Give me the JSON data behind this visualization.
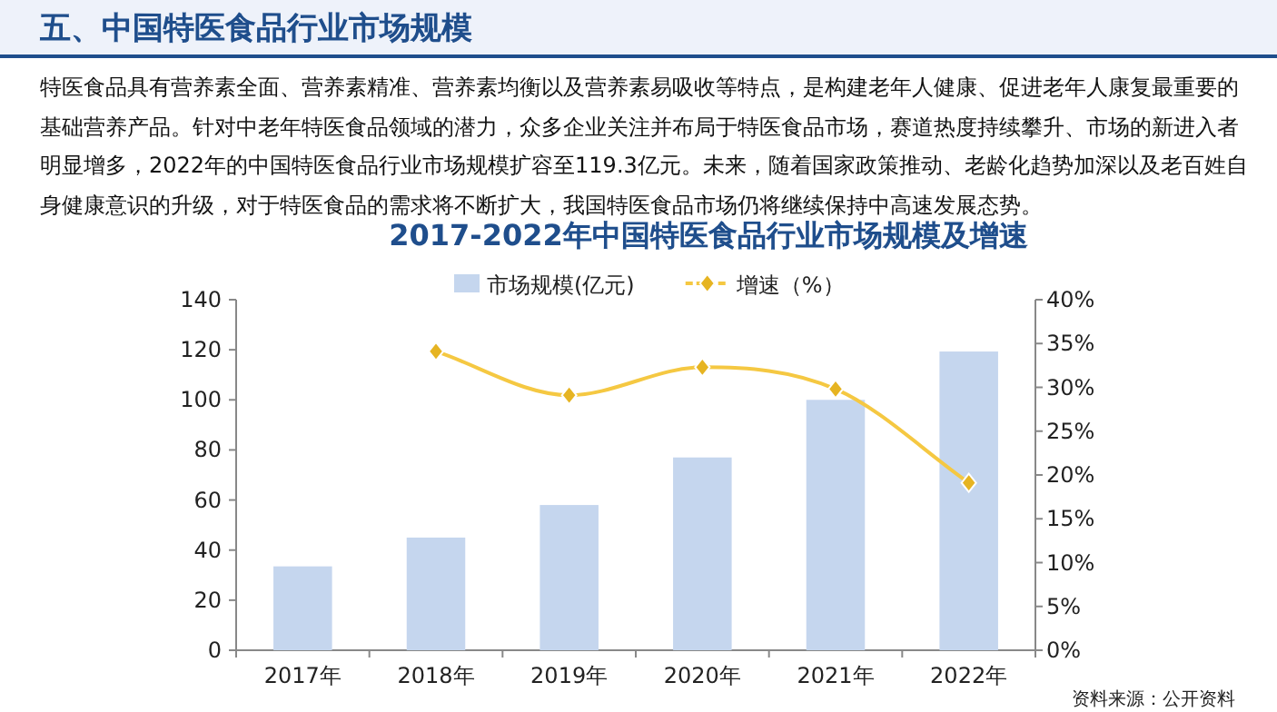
{
  "chart_data": {
    "type": "bar",
    "title": "2017-2022年中国特医食品行业市场规模及增速",
    "annotations": [
      "五、中国特医食品行业市场规模",
      "特医食品具有营养素全面、营养素精准、营养素均衡以及营养素易吸收等特点，是构建老年人健康、促进老年人康复最重要的基础营养产品。针对中老年特医食品领域的潜力，众多企业关注并布局于特医食品市场，赛道热度持续攀升、市场的新进入者明显增多，2022年的中国特医食品行业市场规模扩容至119.3亿元。未来，随着国家政策推动、老龄化趋势加深以及老百姓自身健康意识的升级，对于特医食品的需求将不断扩大，我国特医食品市场仍将继续保持中高速发展态势。",
      "资料来源：公开资料"
    ],
    "categories": [
      "2017年",
      "2018年",
      "2019年",
      "2020年",
      "2021年",
      "2022年"
    ],
    "series": [
      {
        "name": "市场规模(亿元)",
        "color": "#c5d6ee",
        "values": [
          33.5,
          45,
          58,
          77,
          100,
          119.3
        ]
      },
      {
        "name": "增速（%）",
        "type": "line",
        "axis": "y2",
        "color": "#f5c842",
        "marker": "diamond",
        "values": [
          null,
          34.1,
          29.1,
          32.3,
          29.8,
          19.1
        ]
      }
    ],
    "ylim": [
      0,
      140
    ],
    "yticks": [
      0,
      20,
      40,
      60,
      80,
      100,
      120,
      140
    ],
    "y2lim": [
      0,
      40
    ],
    "y2ticks": [
      {
        "value": 0,
        "label": "0%"
      },
      {
        "value": 5,
        "label": "5%"
      },
      {
        "value": 10,
        "label": "10%"
      },
      {
        "value": 15,
        "label": "15%"
      },
      {
        "value": 20,
        "label": "20%"
      },
      {
        "value": 25,
        "label": "25%"
      },
      {
        "value": 30,
        "label": "30%"
      },
      {
        "value": 35,
        "label": "35%"
      },
      {
        "value": 40,
        "label": "40%"
      }
    ],
    "legend": "top",
    "grid": false
  }
}
